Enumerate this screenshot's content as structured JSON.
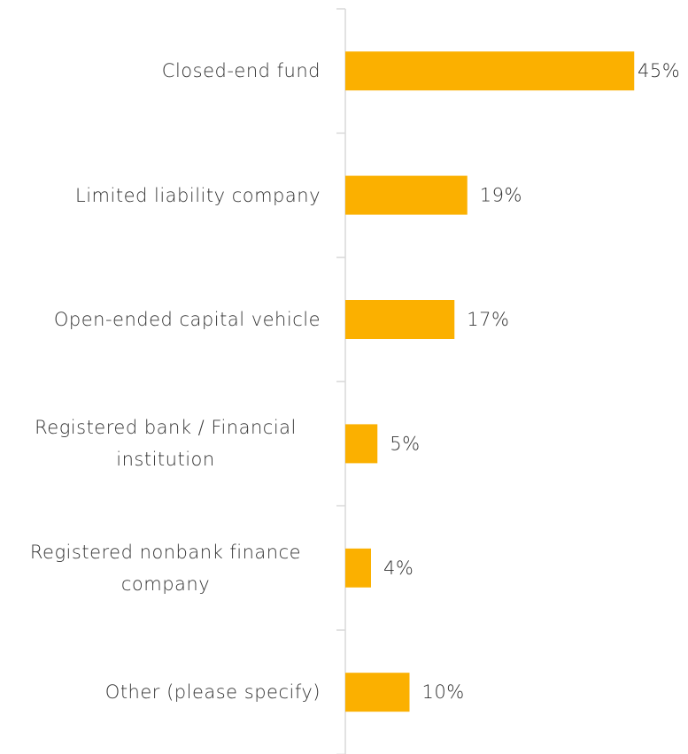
{
  "chart_data": {
    "type": "bar",
    "orientation": "horizontal",
    "categories": [
      "Closed-end fund",
      "Limited liability company",
      "Open-ended capital vehicle",
      "Registered bank / Financial institution",
      "Registered nonbank finance company",
      "Other (please specify)"
    ],
    "values": [
      45,
      19,
      17,
      5,
      4,
      10
    ],
    "value_labels": [
      "45%",
      "19%",
      "17%",
      "5%",
      "4%",
      "10%"
    ],
    "color": "#fbb000"
  }
}
